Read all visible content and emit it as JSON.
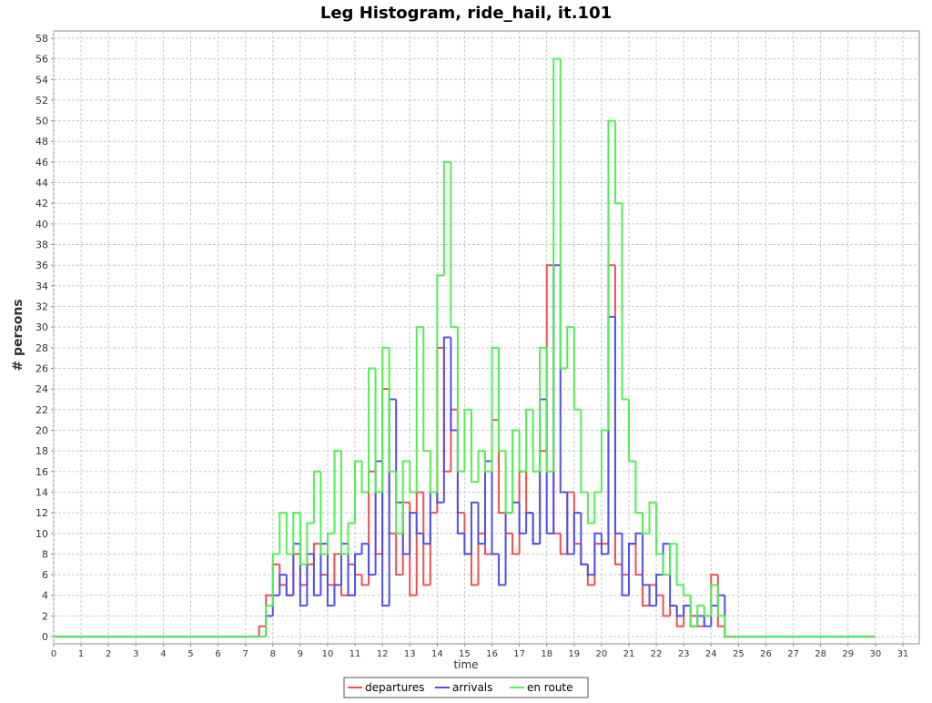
{
  "chart_data": {
    "type": "step-line",
    "title": "Leg Histogram, ride_hail, it.101",
    "x_label": "time",
    "y_label": "# persons",
    "x": [
      0,
      7.25,
      7.5,
      7.75,
      8,
      8.25,
      8.5,
      8.75,
      9,
      9.25,
      9.5,
      9.75,
      10,
      10.25,
      10.5,
      10.75,
      11,
      11.25,
      11.5,
      11.75,
      12,
      12.25,
      12.5,
      12.75,
      13,
      13.25,
      13.5,
      13.75,
      14,
      14.25,
      14.5,
      14.75,
      15,
      15.25,
      15.5,
      15.75,
      16,
      16.25,
      16.5,
      16.75,
      17,
      17.25,
      17.5,
      17.75,
      18,
      18.25,
      18.5,
      18.75,
      19,
      19.25,
      19.5,
      19.75,
      20,
      20.25,
      20.5,
      20.75,
      21,
      21.25,
      21.5,
      21.75,
      22,
      22.25,
      22.5,
      22.75,
      23,
      23.25,
      23.5,
      23.75,
      24,
      24.25,
      24.5,
      30
    ],
    "series": [
      {
        "name": "departures",
        "color": "#f05050",
        "values": [
          0,
          0,
          1,
          4,
          7,
          5,
          4,
          8,
          5,
          7,
          9,
          6,
          5,
          8,
          4,
          7,
          6,
          5,
          16,
          8,
          24,
          10,
          6,
          13,
          4,
          14,
          5,
          12,
          28,
          16,
          22,
          12,
          8,
          5,
          10,
          8,
          21,
          12,
          10,
          8,
          16,
          12,
          9,
          18,
          36,
          10,
          8,
          14,
          9,
          7,
          5,
          9,
          9,
          36,
          7,
          6,
          9,
          6,
          3,
          5,
          4,
          2,
          3,
          1,
          3,
          2,
          1,
          2,
          6,
          1,
          0,
          0
        ]
      },
      {
        "name": "arrivals",
        "color": "#5050f0",
        "values": [
          0,
          0,
          0,
          2,
          4,
          6,
          4,
          9,
          3,
          8,
          4,
          9,
          3,
          5,
          9,
          4,
          8,
          9,
          6,
          17,
          3,
          23,
          13,
          8,
          12,
          10,
          9,
          14,
          13,
          29,
          20,
          10,
          8,
          13,
          9,
          17,
          8,
          5,
          12,
          13,
          10,
          12,
          9,
          23,
          10,
          36,
          14,
          8,
          12,
          7,
          6,
          10,
          8,
          31,
          10,
          4,
          9,
          10,
          5,
          3,
          6,
          9,
          3,
          2,
          3,
          1,
          2,
          1,
          3,
          4,
          0,
          0
        ]
      },
      {
        "name": "en route",
        "color": "#50f050",
        "values": [
          0,
          0,
          0,
          3,
          8,
          12,
          8,
          12,
          7,
          11,
          16,
          8,
          10,
          18,
          8,
          11,
          17,
          14,
          26,
          14,
          28,
          16,
          10,
          17,
          14,
          30,
          18,
          14,
          35,
          46,
          30,
          16,
          22,
          15,
          18,
          16,
          28,
          18,
          12,
          20,
          16,
          22,
          16,
          28,
          16,
          56,
          26,
          30,
          22,
          14,
          11,
          14,
          20,
          50,
          42,
          23,
          17,
          12,
          10,
          13,
          8,
          6,
          9,
          5,
          4,
          1,
          3,
          2,
          5,
          2,
          0,
          0
        ]
      }
    ],
    "xlim": [
      0,
      31.6
    ],
    "ylim": [
      -0.7,
      58.7
    ],
    "xticks": [
      0,
      1,
      2,
      3,
      4,
      5,
      6,
      7,
      8,
      9,
      10,
      11,
      12,
      13,
      14,
      15,
      16,
      17,
      18,
      19,
      20,
      21,
      22,
      23,
      24,
      25,
      26,
      27,
      28,
      29,
      30,
      31
    ],
    "yticks": [
      0,
      2,
      4,
      6,
      8,
      10,
      12,
      14,
      16,
      18,
      20,
      22,
      24,
      26,
      28,
      30,
      32,
      34,
      36,
      38,
      40,
      42,
      44,
      46,
      48,
      50,
      52,
      54,
      56,
      58
    ],
    "grid": true,
    "legend": "bottom"
  }
}
